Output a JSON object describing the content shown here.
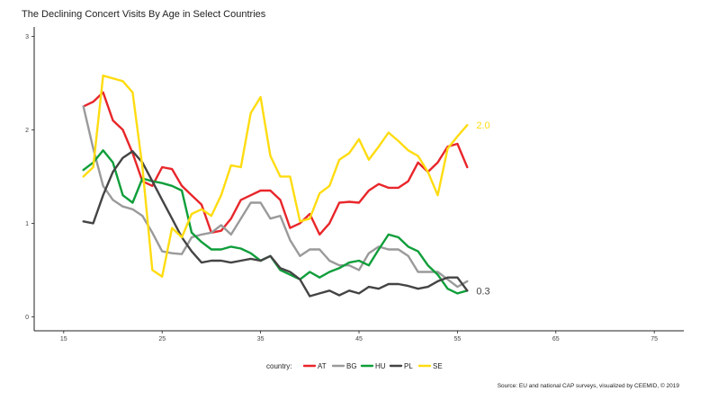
{
  "chart_data": {
    "type": "line",
    "title": "The Declining Concert Visits By Age in Select Countries",
    "xlabel": "",
    "ylabel": "",
    "xlim": [
      12,
      78
    ],
    "ylim": [
      -0.15,
      3.1
    ],
    "x_ticks": [
      "15",
      "25",
      "35",
      "45",
      "55",
      "65",
      "75"
    ],
    "y_ticks": [
      "0",
      "1",
      "2",
      "3"
    ],
    "grid": false,
    "legend": {
      "title": "country:",
      "position": "bottom",
      "entries": [
        "AT",
        "BG",
        "HU",
        "PL",
        "SE"
      ]
    },
    "end_labels": [
      {
        "series": "SE",
        "text": "2.0"
      },
      {
        "series": "PL",
        "text": "0.3"
      }
    ],
    "source": "Source: EU and national CAP surveys, visualized by CEEMID, © 2019",
    "series": [
      {
        "name": "AT",
        "color": "#e8262a",
        "points": [
          [
            17,
            2.25
          ],
          [
            18,
            2.3
          ],
          [
            19,
            2.4
          ],
          [
            20,
            2.1
          ],
          [
            21,
            2.0
          ],
          [
            22,
            1.75
          ],
          [
            23,
            1.45
          ],
          [
            24,
            1.4
          ],
          [
            25,
            1.6
          ],
          [
            26,
            1.58
          ],
          [
            27,
            1.4
          ],
          [
            28,
            1.3
          ],
          [
            29,
            1.2
          ],
          [
            30,
            0.9
          ],
          [
            31,
            0.92
          ],
          [
            32,
            1.05
          ],
          [
            33,
            1.25
          ],
          [
            34,
            1.3
          ],
          [
            35,
            1.35
          ],
          [
            36,
            1.35
          ],
          [
            37,
            1.25
          ],
          [
            38,
            0.95
          ],
          [
            39,
            1.0
          ],
          [
            40,
            1.1
          ],
          [
            41,
            0.88
          ],
          [
            42,
            1.0
          ],
          [
            43,
            1.22
          ],
          [
            44,
            1.23
          ],
          [
            45,
            1.22
          ],
          [
            46,
            1.35
          ],
          [
            47,
            1.42
          ],
          [
            48,
            1.38
          ],
          [
            49,
            1.38
          ],
          [
            50,
            1.45
          ],
          [
            51,
            1.65
          ],
          [
            52,
            1.55
          ],
          [
            53,
            1.65
          ],
          [
            54,
            1.82
          ],
          [
            55,
            1.85
          ],
          [
            56,
            1.6
          ]
        ]
      },
      {
        "name": "BG",
        "color": "#9a9a9a",
        "points": [
          [
            17,
            2.25
          ],
          [
            18,
            1.8
          ],
          [
            19,
            1.4
          ],
          [
            20,
            1.25
          ],
          [
            21,
            1.18
          ],
          [
            22,
            1.15
          ],
          [
            23,
            1.08
          ],
          [
            24,
            0.9
          ],
          [
            25,
            0.7
          ],
          [
            26,
            0.68
          ],
          [
            27,
            0.67
          ],
          [
            28,
            0.85
          ],
          [
            29,
            0.88
          ],
          [
            30,
            0.9
          ],
          [
            31,
            0.98
          ],
          [
            32,
            0.88
          ],
          [
            33,
            1.05
          ],
          [
            34,
            1.22
          ],
          [
            35,
            1.22
          ],
          [
            36,
            1.05
          ],
          [
            37,
            1.08
          ],
          [
            38,
            0.82
          ],
          [
            39,
            0.65
          ],
          [
            40,
            0.72
          ],
          [
            41,
            0.72
          ],
          [
            42,
            0.6
          ],
          [
            43,
            0.55
          ],
          [
            44,
            0.55
          ],
          [
            45,
            0.5
          ],
          [
            46,
            0.68
          ],
          [
            47,
            0.75
          ],
          [
            48,
            0.72
          ],
          [
            49,
            0.72
          ],
          [
            50,
            0.65
          ],
          [
            51,
            0.48
          ],
          [
            52,
            0.48
          ],
          [
            53,
            0.48
          ],
          [
            54,
            0.4
          ],
          [
            55,
            0.32
          ],
          [
            56,
            0.38
          ]
        ]
      },
      {
        "name": "HU",
        "color": "#0f9e3a",
        "points": [
          [
            17,
            1.57
          ],
          [
            18,
            1.65
          ],
          [
            19,
            1.78
          ],
          [
            20,
            1.65
          ],
          [
            21,
            1.3
          ],
          [
            22,
            1.22
          ],
          [
            23,
            1.48
          ],
          [
            24,
            1.45
          ],
          [
            25,
            1.43
          ],
          [
            26,
            1.4
          ],
          [
            27,
            1.35
          ],
          [
            28,
            0.9
          ],
          [
            29,
            0.8
          ],
          [
            30,
            0.72
          ],
          [
            31,
            0.72
          ],
          [
            32,
            0.75
          ],
          [
            33,
            0.73
          ],
          [
            34,
            0.68
          ],
          [
            35,
            0.6
          ],
          [
            36,
            0.65
          ],
          [
            37,
            0.5
          ],
          [
            38,
            0.45
          ],
          [
            39,
            0.4
          ],
          [
            40,
            0.48
          ],
          [
            41,
            0.42
          ],
          [
            42,
            0.48
          ],
          [
            43,
            0.52
          ],
          [
            44,
            0.58
          ],
          [
            45,
            0.6
          ],
          [
            46,
            0.55
          ],
          [
            47,
            0.72
          ],
          [
            48,
            0.88
          ],
          [
            49,
            0.85
          ],
          [
            50,
            0.75
          ],
          [
            51,
            0.7
          ],
          [
            52,
            0.55
          ],
          [
            53,
            0.45
          ],
          [
            54,
            0.3
          ],
          [
            55,
            0.25
          ],
          [
            56,
            0.28
          ]
        ]
      },
      {
        "name": "PL",
        "color": "#444444",
        "points": [
          [
            17,
            1.02
          ],
          [
            18,
            1.0
          ],
          [
            19,
            1.3
          ],
          [
            20,
            1.55
          ],
          [
            21,
            1.7
          ],
          [
            22,
            1.77
          ],
          [
            23,
            1.65
          ],
          [
            24,
            1.45
          ],
          [
            25,
            1.25
          ],
          [
            26,
            1.05
          ],
          [
            27,
            0.85
          ],
          [
            28,
            0.7
          ],
          [
            29,
            0.58
          ],
          [
            30,
            0.6
          ],
          [
            31,
            0.6
          ],
          [
            32,
            0.58
          ],
          [
            33,
            0.6
          ],
          [
            34,
            0.62
          ],
          [
            35,
            0.6
          ],
          [
            36,
            0.65
          ],
          [
            37,
            0.52
          ],
          [
            38,
            0.48
          ],
          [
            39,
            0.4
          ],
          [
            40,
            0.22
          ],
          [
            41,
            0.25
          ],
          [
            42,
            0.28
          ],
          [
            43,
            0.23
          ],
          [
            44,
            0.28
          ],
          [
            45,
            0.25
          ],
          [
            46,
            0.32
          ],
          [
            47,
            0.3
          ],
          [
            48,
            0.35
          ],
          [
            49,
            0.35
          ],
          [
            50,
            0.33
          ],
          [
            51,
            0.3
          ],
          [
            52,
            0.32
          ],
          [
            53,
            0.38
          ],
          [
            54,
            0.42
          ],
          [
            55,
            0.42
          ],
          [
            56,
            0.28
          ]
        ]
      },
      {
        "name": "SE",
        "color": "#ffdc10",
        "points": [
          [
            17,
            1.5
          ],
          [
            18,
            1.6
          ],
          [
            19,
            2.58
          ],
          [
            20,
            2.55
          ],
          [
            21,
            2.52
          ],
          [
            22,
            2.4
          ],
          [
            23,
            1.6
          ],
          [
            24,
            0.5
          ],
          [
            25,
            0.43
          ],
          [
            26,
            0.95
          ],
          [
            27,
            0.85
          ],
          [
            28,
            1.1
          ],
          [
            29,
            1.15
          ],
          [
            30,
            1.08
          ],
          [
            31,
            1.3
          ],
          [
            32,
            1.62
          ],
          [
            33,
            1.6
          ],
          [
            34,
            2.18
          ],
          [
            35,
            2.35
          ],
          [
            36,
            1.72
          ],
          [
            37,
            1.5
          ],
          [
            38,
            1.5
          ],
          [
            39,
            1.02
          ],
          [
            40,
            1.05
          ],
          [
            41,
            1.32
          ],
          [
            42,
            1.4
          ],
          [
            43,
            1.68
          ],
          [
            44,
            1.75
          ],
          [
            45,
            1.9
          ],
          [
            46,
            1.68
          ],
          [
            47,
            1.82
          ],
          [
            48,
            1.97
          ],
          [
            49,
            1.88
          ],
          [
            50,
            1.78
          ],
          [
            51,
            1.72
          ],
          [
            52,
            1.55
          ],
          [
            53,
            1.3
          ],
          [
            54,
            1.8
          ],
          [
            55,
            1.93
          ],
          [
            56,
            2.05
          ]
        ]
      }
    ]
  }
}
